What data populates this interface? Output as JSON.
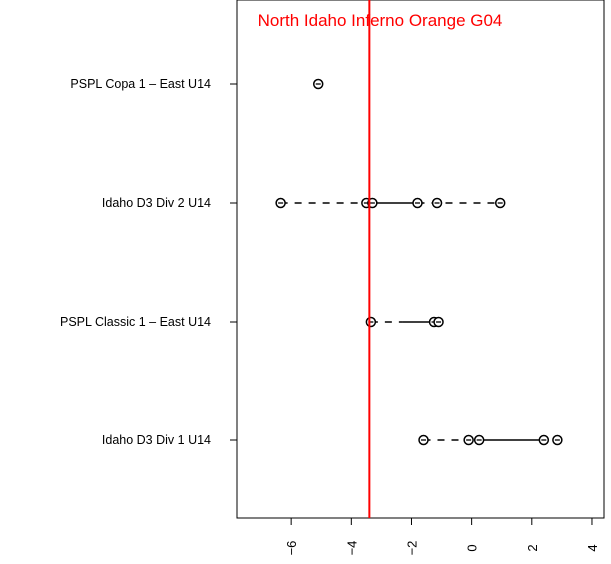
{
  "chart_data": {
    "type": "dot-range",
    "title": "North Idaho Inferno Orange G04",
    "title_color": "#ff0000",
    "reference_line": {
      "x": -3.4,
      "color": "#ff0000"
    },
    "xlim": [
      -7.8,
      4.4
    ],
    "x_ticks": [
      {
        "value": -6,
        "label": "-6"
      },
      {
        "value": -4,
        "label": "-4"
      },
      {
        "value": -2,
        "label": "-2"
      },
      {
        "value": 0,
        "label": "0"
      },
      {
        "value": 2,
        "label": "2"
      },
      {
        "value": 4,
        "label": "4"
      }
    ],
    "categories": [
      "PSPL Copa 1 – East U14",
      "Idaho D3 Div 2 U14",
      "PSPL Classic 1 – East U14",
      "Idaho D3 Div 1 U14"
    ],
    "rows": [
      {
        "points": [
          -5.1
        ],
        "solid": [],
        "dashed": []
      },
      {
        "points": [
          -6.35,
          -3.5,
          -3.3,
          -1.8,
          -1.15,
          0.95
        ],
        "solid": [
          [
            -3.5,
            -1.8
          ]
        ],
        "dashed": [
          [
            -6.35,
            -3.5
          ],
          [
            -1.8,
            0.95
          ]
        ]
      },
      {
        "points": [
          -3.35,
          -1.25,
          -1.1
        ],
        "solid": [
          [
            -2.3,
            -1.1
          ]
        ],
        "dashed": [
          [
            -3.35,
            -2.3
          ]
        ]
      },
      {
        "points": [
          -1.6,
          -0.1,
          0.25,
          2.4,
          2.85
        ],
        "solid": [
          [
            0.25,
            2.4
          ]
        ],
        "dashed": [
          [
            -1.6,
            0.25
          ]
        ]
      }
    ]
  }
}
